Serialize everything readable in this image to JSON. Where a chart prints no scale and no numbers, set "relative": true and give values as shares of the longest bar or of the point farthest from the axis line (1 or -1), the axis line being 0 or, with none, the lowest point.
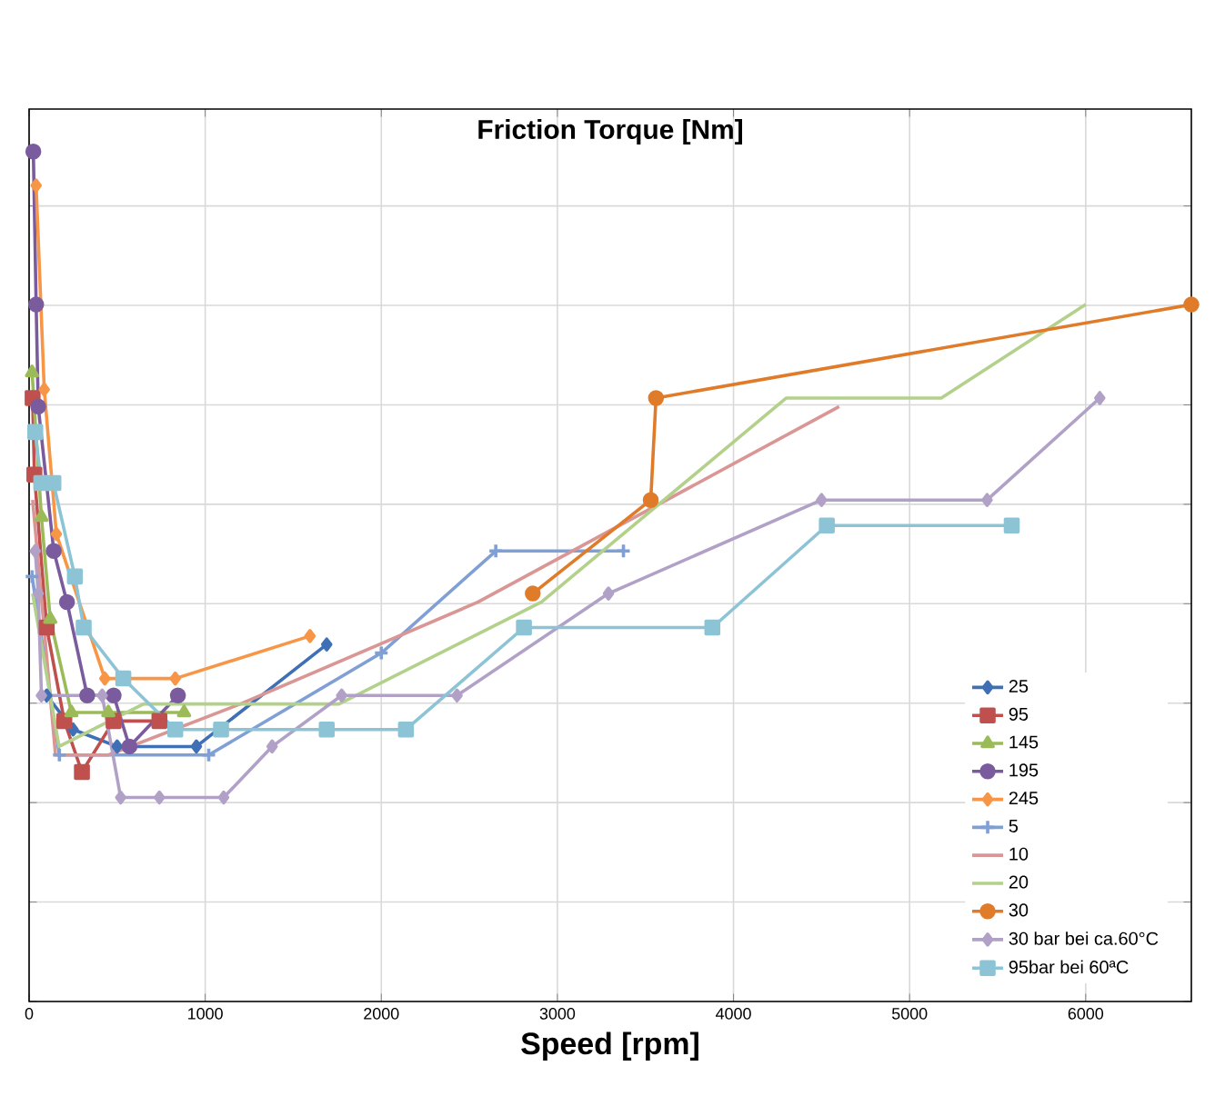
{
  "chart_data": {
    "type": "line",
    "title": "Friction Torque [Nm]",
    "xlabel": "Speed [rpm]",
    "relative": true,
    "xlim": [
      0,
      6600
    ],
    "xticks": [
      0,
      1000,
      2000,
      3000,
      4000,
      5000,
      6000
    ],
    "grid": true,
    "legend": "bottom right",
    "series": [
      {
        "name": "25",
        "color": "#3f6fb5",
        "marker": "diamond",
        "x": [
          100,
          250,
          500,
          950,
          1690
        ],
        "values": [
          0.36,
          0.32,
          0.3,
          0.3,
          0.42
        ]
      },
      {
        "name": "95",
        "color": "#c0504d",
        "marker": "square",
        "x": [
          20,
          30,
          100,
          200,
          300,
          480,
          740
        ],
        "values": [
          0.71,
          0.62,
          0.44,
          0.33,
          0.27,
          0.33,
          0.33
        ]
      },
      {
        "name": "145",
        "color": "#9bbb59",
        "marker": "triangle",
        "x": [
          17,
          70,
          120,
          240,
          450,
          880
        ],
        "values": [
          0.74,
          0.57,
          0.45,
          0.34,
          0.34,
          0.34
        ]
      },
      {
        "name": "195",
        "color": "#7a5c9e",
        "marker": "circle",
        "x": [
          24,
          40,
          52,
          140,
          215,
          330,
          480,
          570,
          845
        ],
        "values": [
          1,
          0.82,
          0.7,
          0.53,
          0.47,
          0.36,
          0.36,
          0.3,
          0.36
        ]
      },
      {
        "name": "245",
        "color": "#f79646",
        "marker": "diamond",
        "x": [
          40,
          86,
          155,
          430,
          830,
          1595
        ],
        "values": [
          0.96,
          0.72,
          0.55,
          0.38,
          0.38,
          0.43
        ]
      },
      {
        "name": "5",
        "color": "#7f9fd5",
        "marker": "cross",
        "x": [
          17,
          172,
          1020,
          2000,
          2650,
          3375
        ],
        "values": [
          0.5,
          0.29,
          0.29,
          0.41,
          0.53,
          0.53
        ]
      },
      {
        "name": "10",
        "color": "#d99694",
        "marker": "none",
        "x": [
          20,
          150,
          450,
          1200,
          2550,
          4600
        ],
        "values": [
          0.59,
          0.29,
          0.29,
          0.35,
          0.47,
          0.7
        ]
      },
      {
        "name": "20",
        "color": "#b3d18a",
        "marker": "none",
        "x": [
          20,
          170,
          650,
          1760,
          2910,
          4300,
          5180,
          6000
        ],
        "values": [
          0.48,
          0.3,
          0.35,
          0.35,
          0.47,
          0.71,
          0.71,
          0.82
        ]
      },
      {
        "name": "30",
        "color": "#e07b2a",
        "marker": "circle",
        "x": [
          2860,
          3530,
          3560,
          6600
        ],
        "values": [
          0.48,
          0.59,
          0.71,
          0.82
        ]
      },
      {
        "name": "30 bar bei ca.60°C",
        "color": "#b2a1c7",
        "marker": "diamond",
        "x": [
          35,
          52,
          70,
          415,
          520,
          740,
          1105,
          1380,
          1775,
          2430,
          3290,
          4500,
          5440,
          6080
        ],
        "values": [
          0.53,
          0.48,
          0.36,
          0.36,
          0.24,
          0.24,
          0.24,
          0.3,
          0.36,
          0.36,
          0.48,
          0.59,
          0.59,
          0.71
        ]
      },
      {
        "name": "95bar bei 60ªC",
        "color": "#8cc4d6",
        "marker": "square",
        "x": [
          35,
          69,
          138,
          260,
          310,
          535,
          830,
          1090,
          1690,
          2140,
          2810,
          3880,
          4530,
          5580
        ],
        "values": [
          0.67,
          0.61,
          0.61,
          0.5,
          0.44,
          0.38,
          0.32,
          0.32,
          0.32,
          0.32,
          0.44,
          0.44,
          0.56,
          0.56
        ]
      }
    ]
  }
}
